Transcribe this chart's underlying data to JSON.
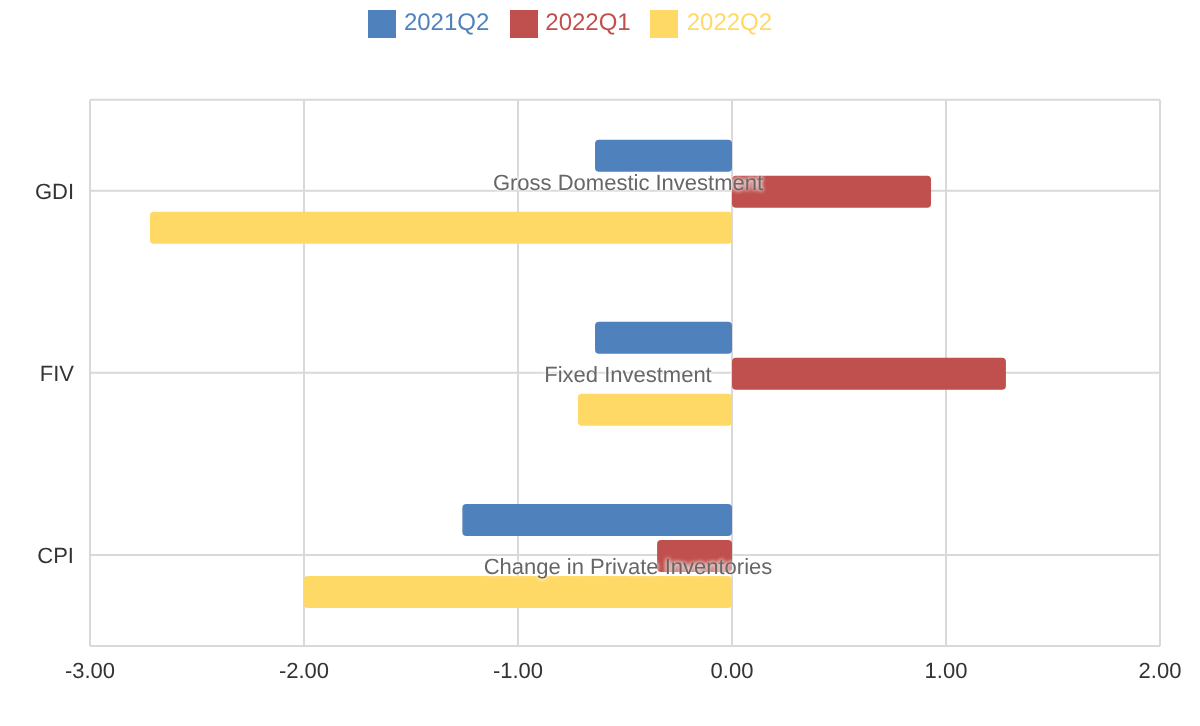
{
  "chart_data": {
    "type": "bar",
    "orientation": "horizontal",
    "categories": [
      "GDI",
      "FIV",
      "CPI"
    ],
    "series": [
      {
        "name": "2021Q2",
        "color": "#4f81bd",
        "values": [
          -0.64,
          -0.64,
          -1.26
        ]
      },
      {
        "name": "2022Q1",
        "color": "#c0504d",
        "values": [
          0.93,
          1.28,
          -0.35
        ]
      },
      {
        "name": "2022Q2",
        "color": "#ffd966",
        "values": [
          -2.72,
          -0.72,
          -2.0
        ]
      }
    ],
    "annotations": [
      "Gross Domestic Investment",
      "Fixed Investment",
      "Change in Private Inventories"
    ],
    "xlim": [
      -3,
      2
    ],
    "xticks": [
      {
        "value": -3,
        "label": "-3.00"
      },
      {
        "value": -2,
        "label": "-2.00"
      },
      {
        "value": -1,
        "label": "-1.00"
      },
      {
        "value": 0,
        "label": "0.00"
      },
      {
        "value": 1,
        "label": "1.00"
      },
      {
        "value": 2,
        "label": "2.00"
      }
    ],
    "grid": true,
    "legend": "top"
  }
}
